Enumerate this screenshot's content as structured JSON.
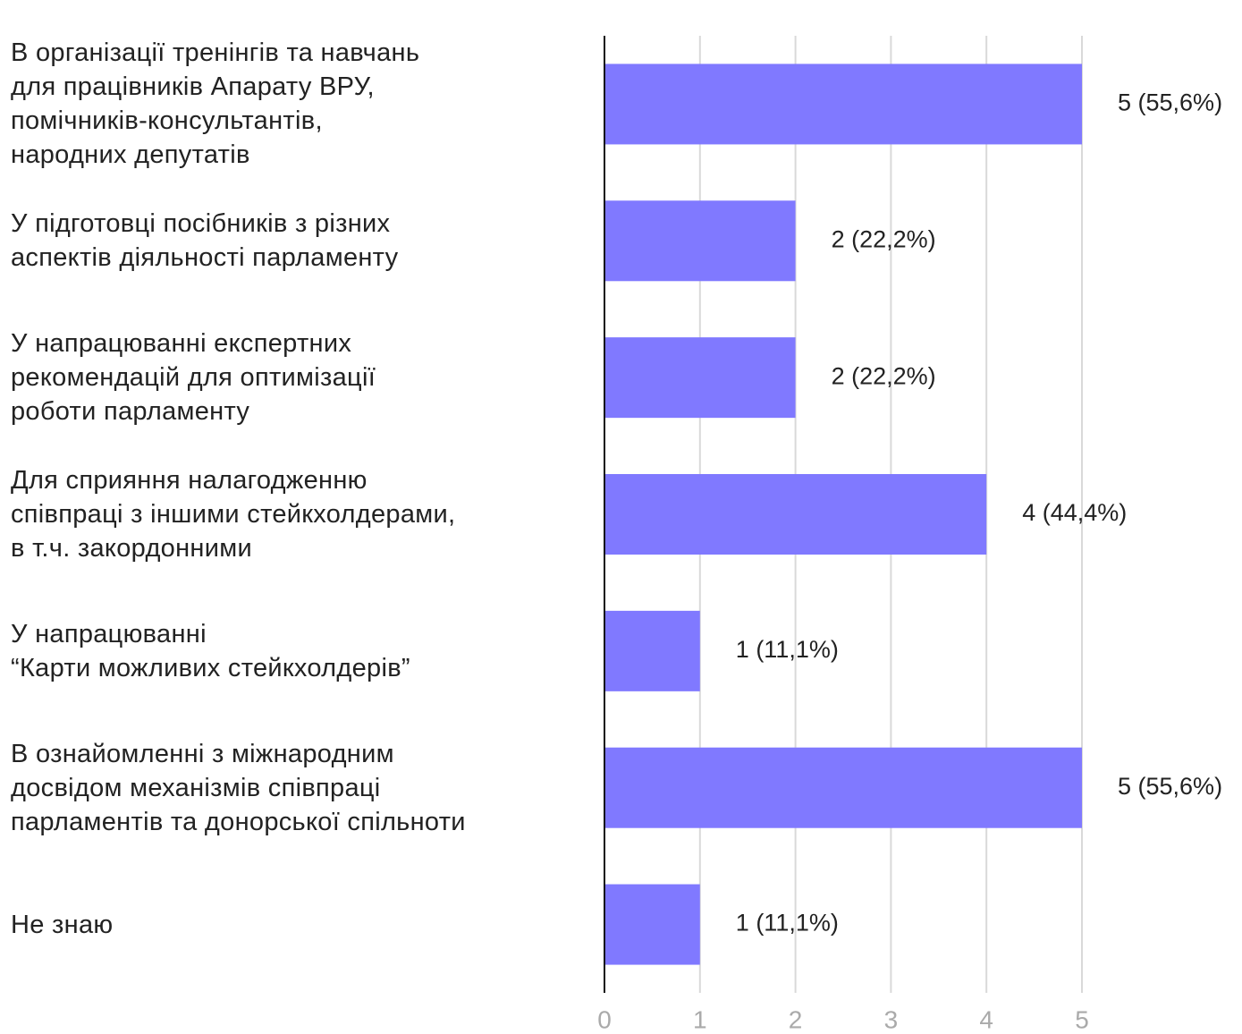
{
  "chart_data": {
    "type": "bar",
    "orientation": "horizontal",
    "categories": [
      "В організації тренінгів та навчань\nдля працівників Апарату ВРУ,\nпомічників-консультантів,\nнародних депутатів",
      "У підготовці посібників з різних\nаспектів діяльності парламенту",
      "У напрацюванні експертних\nрекомендацій для оптимізації\nроботи парламенту",
      "Для сприяння налагодженню\nспівпраці з іншими стейкхолдерами,\nв т.ч. закордонними",
      "У напрацюванні\n“Карти можливих стейкхолдерів”",
      "В ознайомленні з міжнародним\nдосвідом механізмів співпраці\nпарламентів та донорської спільноти",
      "Не знаю"
    ],
    "values": [
      5,
      2,
      2,
      4,
      1,
      5,
      1
    ],
    "value_labels": [
      "5 (55,6%)",
      "2 (22,2%)",
      "2 (22,2%)",
      "4 (44,4%)",
      "1 (11,1%)",
      "5 (55,6%)",
      "1 (11,1%)"
    ],
    "color": "#8079ff",
    "xlim": [
      0,
      5
    ],
    "xticks": [
      0,
      1,
      2,
      3,
      4,
      5
    ],
    "grid": true
  }
}
